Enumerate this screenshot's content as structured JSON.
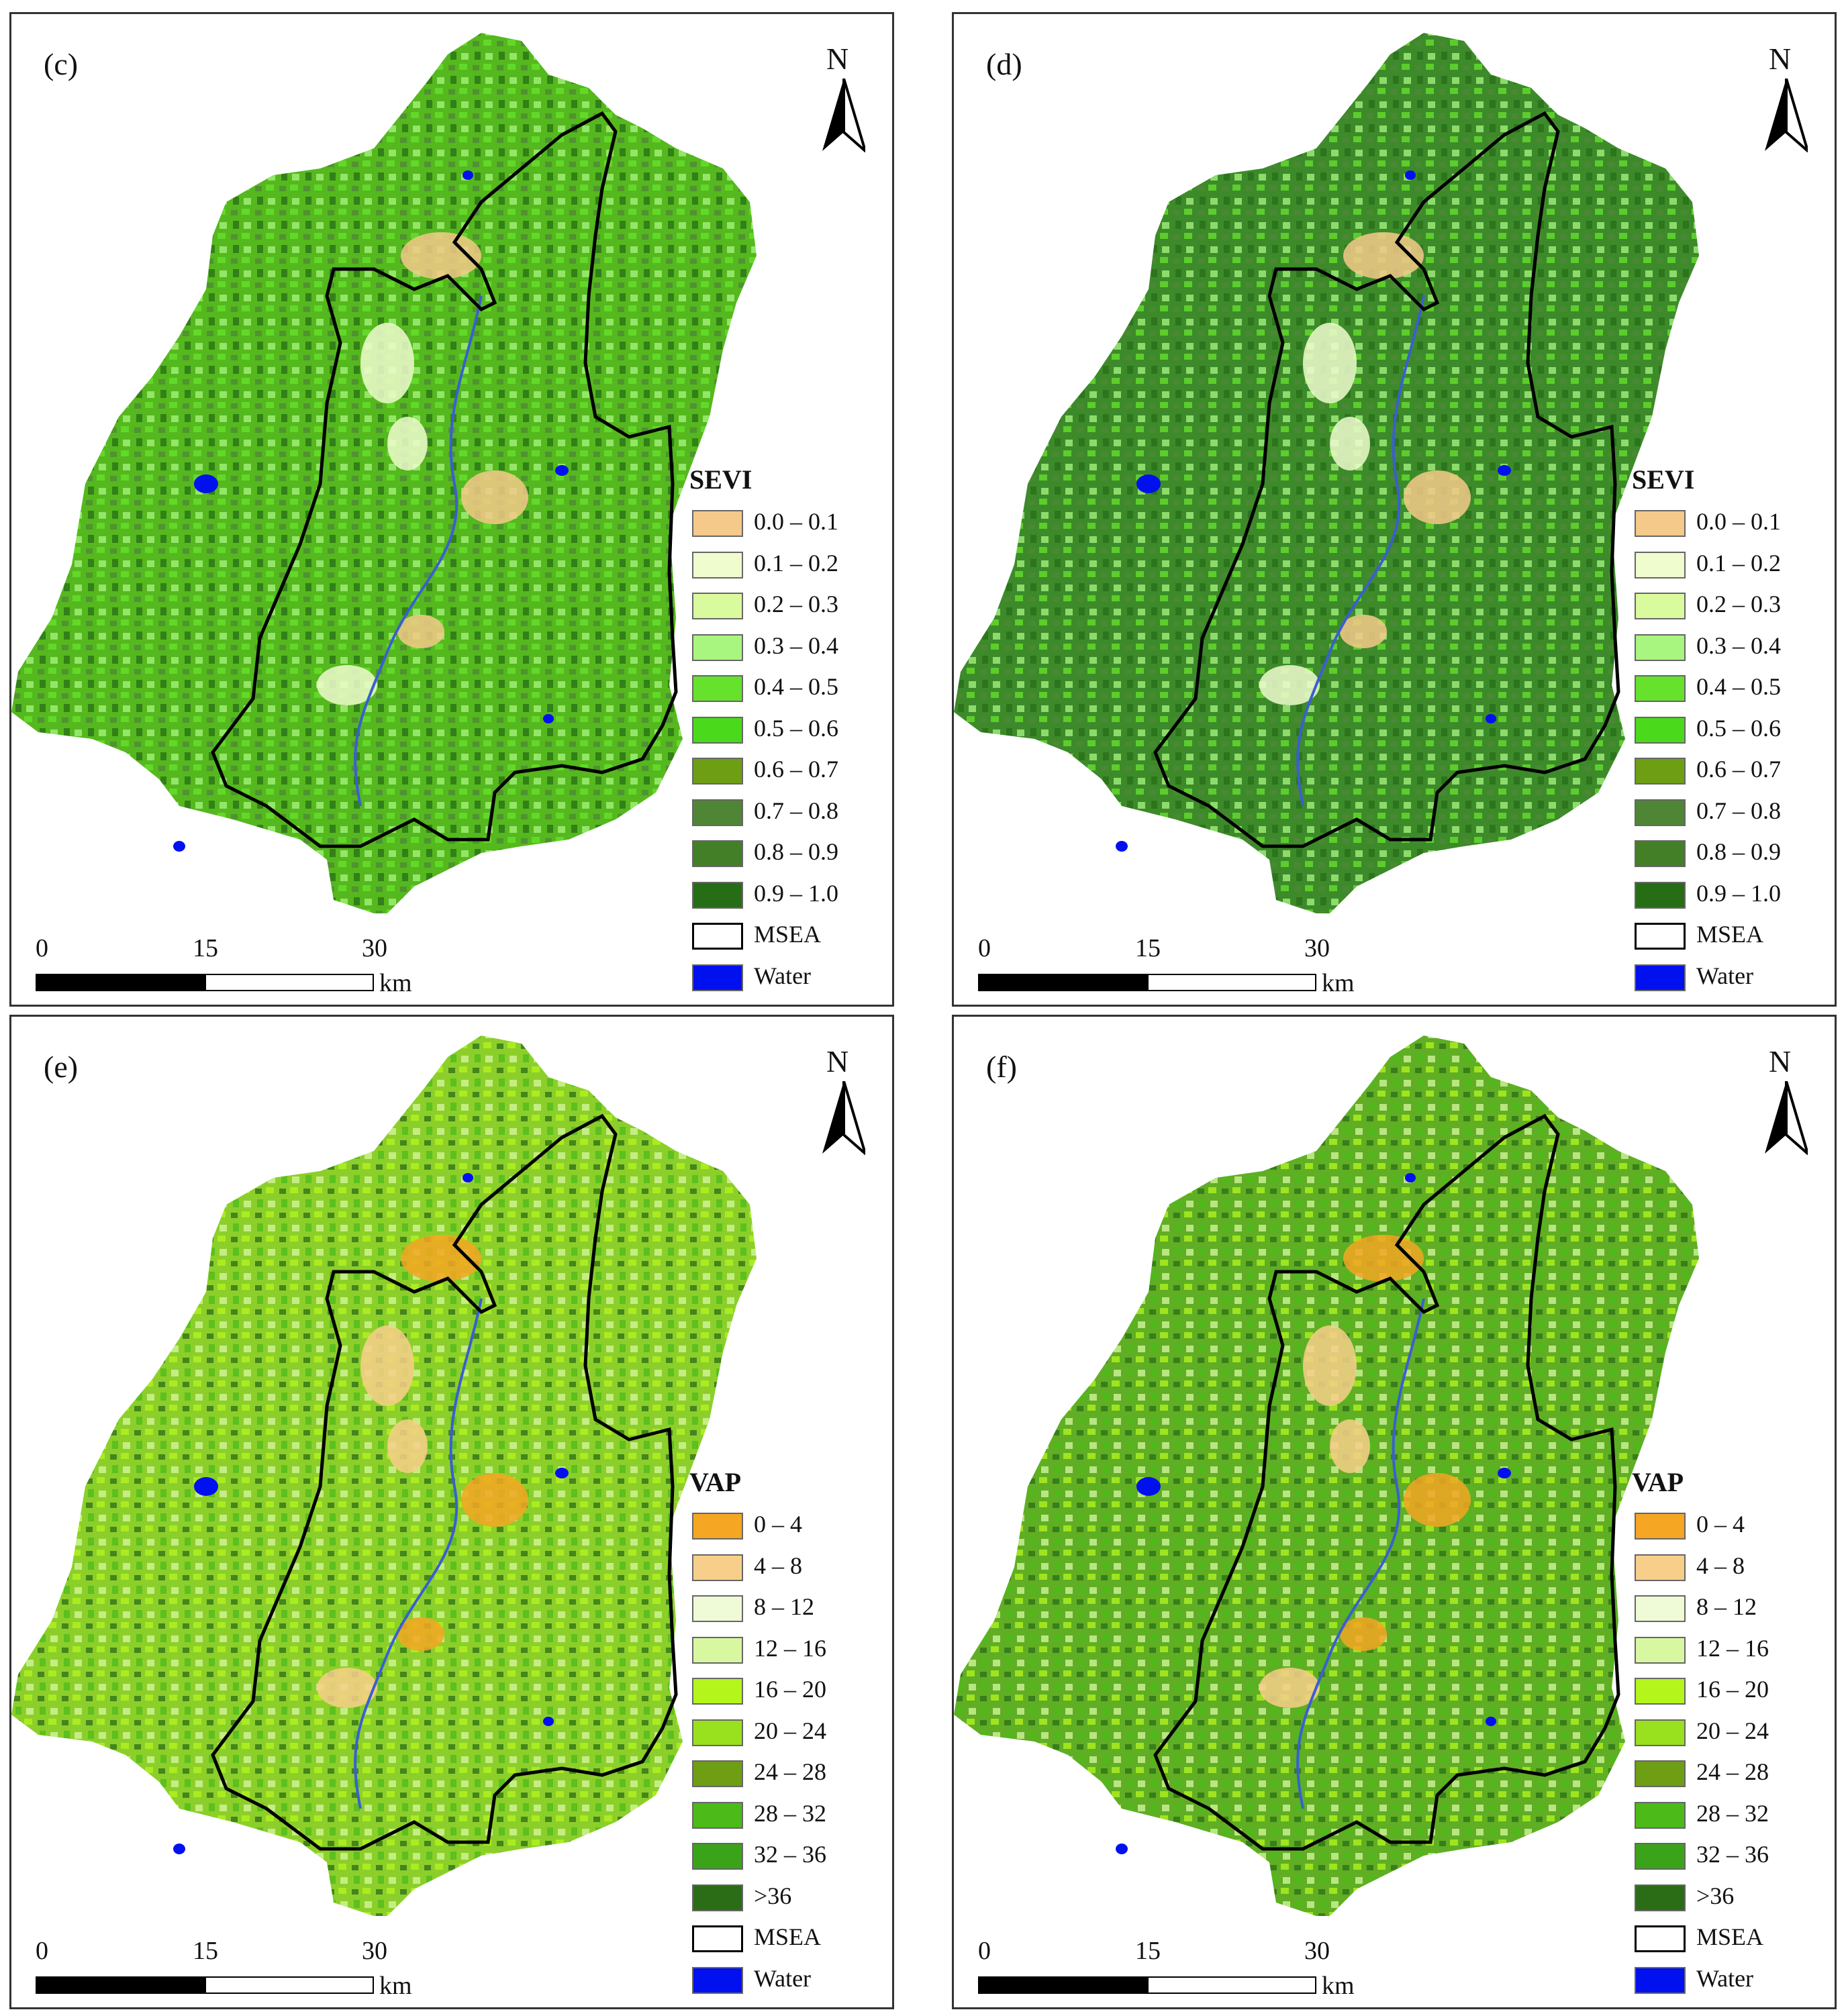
{
  "panels": [
    {
      "id": "c",
      "label": "(c)",
      "legend_title": "SEVI",
      "map_fill": "#55b81e",
      "variant": "sevi"
    },
    {
      "id": "d",
      "label": "(d)",
      "legend_title": "SEVI",
      "map_fill": "#3d8a2a",
      "variant": "sevi"
    },
    {
      "id": "e",
      "label": "(e)",
      "legend_title": "VAP",
      "map_fill": "#8ccf2a",
      "variant": "vap"
    },
    {
      "id": "f",
      "label": "(f)",
      "legend_title": "VAP",
      "map_fill": "#5fae24",
      "variant": "vap"
    }
  ],
  "north_label": "N",
  "scalebar": {
    "ticks": [
      "0",
      "15",
      "30"
    ],
    "unit": "km"
  },
  "legends": {
    "sevi": [
      {
        "label": "0.0 – 0.1",
        "color": "#f5c98a"
      },
      {
        "label": "0.1 – 0.2",
        "color": "#eefcce"
      },
      {
        "label": "0.2 – 0.3",
        "color": "#d9fb9d"
      },
      {
        "label": "0.3 – 0.4",
        "color": "#a8f580"
      },
      {
        "label": "0.4 – 0.5",
        "color": "#66e22c"
      },
      {
        "label": "0.5 – 0.6",
        "color": "#4bd91c"
      },
      {
        "label": "0.6 – 0.7",
        "color": "#6e9e14"
      },
      {
        "label": "0.7 – 0.8",
        "color": "#4e8636"
      },
      {
        "label": "0.8 – 0.9",
        "color": "#437f26"
      },
      {
        "label": "0.9 – 1.0",
        "color": "#276d16"
      },
      {
        "label": "MSEA",
        "color": "#ffffff"
      },
      {
        "label": "Water",
        "color": "#0010ee"
      }
    ],
    "vap": [
      {
        "label": "0 – 4",
        "color": "#f5a623"
      },
      {
        "label": "4 – 8",
        "color": "#f8cf8a"
      },
      {
        "label": "8 – 12",
        "color": "#effbd6"
      },
      {
        "label": "12 – 16",
        "color": "#d7f7a1"
      },
      {
        "label": "16 – 20",
        "color": "#b4f51c"
      },
      {
        "label": "20 – 24",
        "color": "#99e01e"
      },
      {
        "label": "24 – 28",
        "color": "#6e9e14"
      },
      {
        "label": "28 – 32",
        "color": "#4cba19"
      },
      {
        "label": "32 – 36",
        "color": "#3aa31a"
      },
      {
        "label": ">36",
        "color": "#2a6d16"
      },
      {
        "label": "MSEA",
        "color": "#ffffff"
      },
      {
        "label": "Water",
        "color": "#0010ee"
      }
    ]
  }
}
